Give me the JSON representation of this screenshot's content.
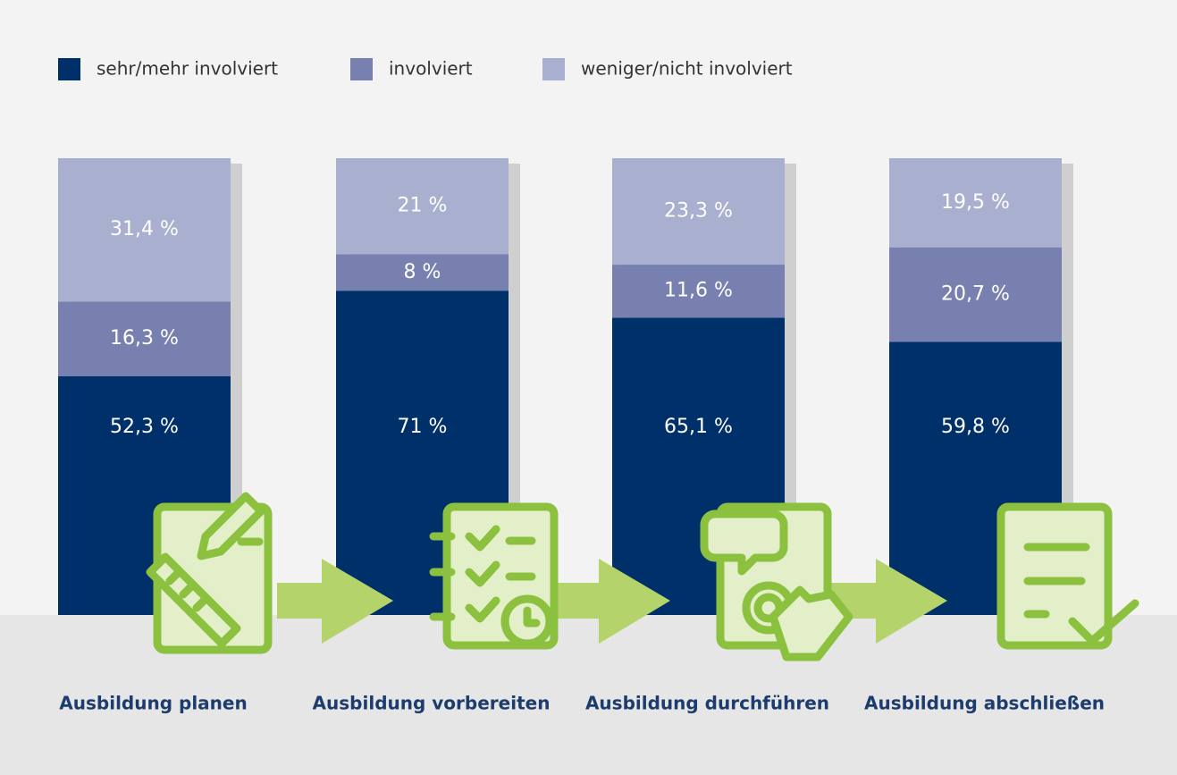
{
  "chart_data": {
    "type": "bar",
    "stacked": true,
    "categories": [
      "Ausbildung planen",
      "Ausbildung vorbereiten",
      "Ausbildung durchführen",
      "Ausbildung abschließen"
    ],
    "series": [
      {
        "name": "sehr/mehr involviert",
        "color": "#00306a",
        "values": [
          52.3,
          71,
          65.1,
          59.8
        ],
        "value_labels": [
          "52,3 %",
          "71 %",
          "65,1 %",
          "59,8 %"
        ]
      },
      {
        "name": "involviert",
        "color": "#7880b0",
        "values": [
          16.3,
          8,
          11.6,
          20.7
        ],
        "value_labels": [
          "16,3 %",
          "8 %",
          "11,6 %",
          "20,7 %"
        ]
      },
      {
        "name": "weniger/nicht involviert",
        "color": "#a9afcf",
        "values": [
          31.4,
          21,
          23.3,
          19.5
        ],
        "value_labels": [
          "31,4 %",
          "21 %",
          "23,3 %",
          "19,5 %"
        ]
      }
    ]
  }
}
